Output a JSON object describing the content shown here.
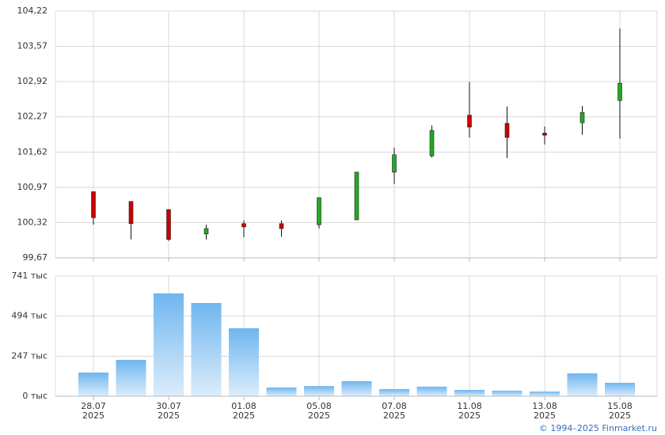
{
  "chart_data": [
    {
      "type": "candlestick",
      "up_color": "#22aa22",
      "down_color": "#cc0000",
      "open": [
        100.89,
        100.71,
        100.56,
        100.11,
        100.3,
        100.3,
        100.28,
        100.37,
        101.25,
        101.55,
        102.3,
        102.15,
        101.97,
        102.16,
        102.57
      ],
      "high": [
        100.89,
        100.71,
        100.56,
        100.28,
        100.36,
        100.36,
        100.78,
        101.25,
        101.7,
        102.11,
        102.91,
        102.46,
        102.09,
        102.47,
        103.9
      ],
      "low": [
        100.28,
        100.01,
        99.98,
        100.01,
        100.05,
        100.06,
        100.21,
        100.37,
        101.03,
        101.52,
        101.89,
        101.51,
        101.76,
        101.94,
        101.87
      ],
      "close": [
        100.41,
        100.3,
        100.01,
        100.21,
        100.24,
        100.21,
        100.78,
        101.25,
        101.57,
        102.02,
        102.08,
        101.89,
        101.93,
        102.35,
        102.89
      ],
      "ylim": [
        99.67,
        104.22
      ],
      "yticks": [
        {
          "value": 99.67,
          "label": "99,67"
        },
        {
          "value": 100.32,
          "label": "100,32"
        },
        {
          "value": 100.97,
          "label": "100,97"
        },
        {
          "value": 101.62,
          "label": "101,62"
        },
        {
          "value": 102.27,
          "label": "102,27"
        },
        {
          "value": 102.92,
          "label": "102,92"
        },
        {
          "value": 103.57,
          "label": "103,57"
        },
        {
          "value": 104.22,
          "label": "104,22"
        }
      ],
      "grid": true
    },
    {
      "type": "bar",
      "color": "#7bbcf0",
      "categories": [
        "28.07",
        null,
        "30.07",
        null,
        "01.08",
        null,
        "05.08",
        null,
        "07.08",
        null,
        "11.08",
        null,
        "13.08",
        null,
        "15.08"
      ],
      "category_years": [
        "2025",
        null,
        "2025",
        null,
        "2025",
        null,
        "2025",
        null,
        "2025",
        null,
        "2025",
        null,
        "2025",
        null,
        "2025"
      ],
      "values": [
        146,
        224,
        634,
        575,
        419,
        54,
        63,
        93,
        44,
        59,
        39,
        34,
        29,
        141,
        83
      ],
      "ylim": [
        0,
        741
      ],
      "yticks": [
        {
          "value": 0,
          "label": "0 тыс"
        },
        {
          "value": 247,
          "label": "247 тыс"
        },
        {
          "value": 494,
          "label": "494 тыс"
        },
        {
          "value": 741,
          "label": "741 тыс"
        }
      ],
      "grid": true
    }
  ],
  "footer": "© 1994–2025 Finmarket.ru"
}
